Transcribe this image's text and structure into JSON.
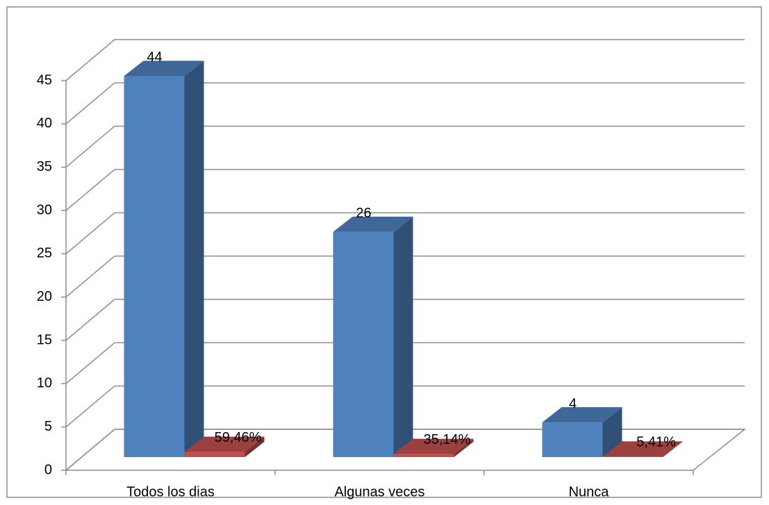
{
  "chart_data": {
    "type": "bar3d",
    "categories": [
      "Todos los dias",
      "Algunas veces",
      "Nunca"
    ],
    "series": [
      {
        "color": "#4f81bd",
        "values": [
          44,
          26,
          4
        ]
      },
      {
        "color": "#c0504d",
        "values": [
          0.5946,
          0.3514,
          0.0541
        ],
        "value_labels": [
          "59,46%",
          "35,14%",
          "5,41%"
        ]
      }
    ],
    "ylim": [
      0,
      45
    ],
    "yticks": [
      0,
      5,
      10,
      15,
      20,
      25,
      30,
      35,
      40,
      45
    ],
    "grid": true
  }
}
